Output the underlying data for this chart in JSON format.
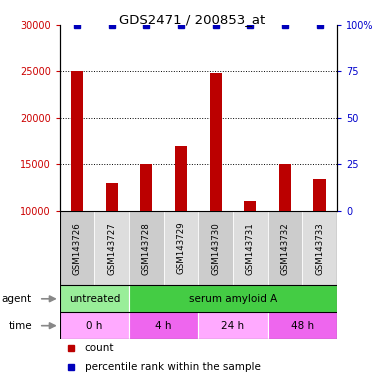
{
  "title": "GDS2471 / 200853_at",
  "samples": [
    "GSM143726",
    "GSM143727",
    "GSM143728",
    "GSM143729",
    "GSM143730",
    "GSM143731",
    "GSM143732",
    "GSM143733"
  ],
  "counts": [
    25000,
    13000,
    15000,
    17000,
    24800,
    11100,
    15000,
    13400
  ],
  "percentile_ranks": [
    100,
    100,
    100,
    100,
    100,
    100,
    100,
    100
  ],
  "ylim_left": [
    10000,
    30000
  ],
  "ylim_right": [
    0,
    100
  ],
  "yticks_left": [
    10000,
    15000,
    20000,
    25000,
    30000
  ],
  "yticks_right": [
    0,
    25,
    50,
    75,
    100
  ],
  "bar_color": "#BB0000",
  "dot_color": "#0000BB",
  "agent_labels": [
    {
      "label": "untreated",
      "start": 0,
      "end": 2,
      "color": "#99EE99"
    },
    {
      "label": "serum amyloid A",
      "start": 2,
      "end": 8,
      "color": "#44CC44"
    }
  ],
  "time_labels": [
    {
      "label": "0 h",
      "start": 0,
      "end": 2,
      "color": "#FFAAFF"
    },
    {
      "label": "4 h",
      "start": 2,
      "end": 4,
      "color": "#EE66EE"
    },
    {
      "label": "24 h",
      "start": 4,
      "end": 6,
      "color": "#FFAAFF"
    },
    {
      "label": "48 h",
      "start": 6,
      "end": 8,
      "color": "#EE66EE"
    }
  ],
  "tick_label_color_left": "#CC0000",
  "tick_label_color_right": "#0000CC",
  "sample_box_colors": [
    "#CCCCCC",
    "#DDDDDD",
    "#CCCCCC",
    "#DDDDDD",
    "#CCCCCC",
    "#DDDDDD",
    "#CCCCCC",
    "#DDDDDD"
  ]
}
